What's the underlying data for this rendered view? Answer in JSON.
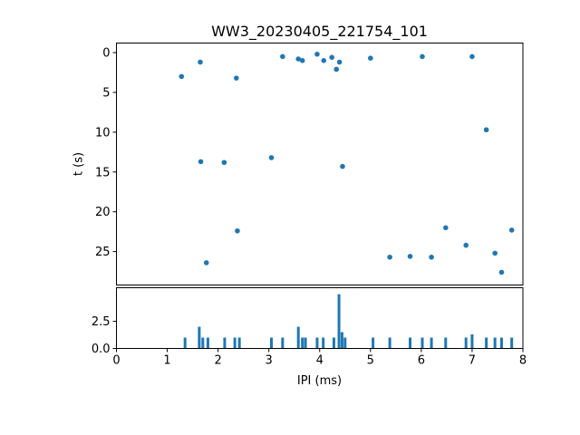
{
  "accent_color": "#1f77b4",
  "axis_color": "#000000",
  "chart_data": [
    {
      "type": "scatter",
      "title": "WW3_20230405_221754_101",
      "xlabel": "",
      "ylabel": "t (s)",
      "xlim": [
        0,
        8
      ],
      "ylim": [
        -1.2,
        29.2
      ],
      "y_inverted": true,
      "yticks": [
        0,
        5,
        10,
        15,
        20,
        25
      ],
      "yticklabels": [
        "0",
        "5",
        "10",
        "15",
        "20",
        "25"
      ],
      "legend": "none",
      "grid": false,
      "points": [
        [
          1.28,
          3.0
        ],
        [
          1.65,
          1.2
        ],
        [
          1.66,
          13.7
        ],
        [
          1.77,
          26.4
        ],
        [
          2.12,
          13.8
        ],
        [
          2.36,
          3.2
        ],
        [
          2.38,
          22.4
        ],
        [
          3.05,
          13.2
        ],
        [
          3.27,
          0.5
        ],
        [
          3.58,
          0.8
        ],
        [
          3.66,
          1.0
        ],
        [
          3.95,
          0.2
        ],
        [
          4.08,
          1.0
        ],
        [
          4.24,
          0.6
        ],
        [
          4.33,
          2.1
        ],
        [
          4.39,
          1.2
        ],
        [
          4.45,
          14.3
        ],
        [
          5.0,
          0.7
        ],
        [
          5.38,
          25.7
        ],
        [
          5.78,
          25.6
        ],
        [
          6.02,
          0.5
        ],
        [
          6.2,
          25.7
        ],
        [
          6.48,
          22.0
        ],
        [
          6.88,
          24.2
        ],
        [
          7.0,
          0.5
        ],
        [
          7.28,
          9.7
        ],
        [
          7.45,
          25.2
        ],
        [
          7.58,
          27.6
        ],
        [
          7.78,
          22.3
        ]
      ]
    },
    {
      "type": "bar",
      "title": "",
      "xlabel": "IPI (ms)",
      "ylabel": "",
      "xlim": [
        0,
        8
      ],
      "ylim": [
        0,
        5.6
      ],
      "yticks": [
        0.0,
        2.5
      ],
      "yticklabels": [
        "0.0",
        "2.5"
      ],
      "xticks": [
        0,
        1,
        2,
        3,
        4,
        5,
        6,
        7,
        8
      ],
      "xticklabels": [
        "0",
        "1",
        "2",
        "3",
        "4",
        "5",
        "6",
        "7",
        "8"
      ],
      "legend": "none",
      "grid": false,
      "bars": [
        [
          1.35,
          1
        ],
        [
          1.63,
          2
        ],
        [
          1.7,
          1
        ],
        [
          1.8,
          1
        ],
        [
          2.13,
          1
        ],
        [
          2.33,
          1
        ],
        [
          2.42,
          1
        ],
        [
          3.05,
          1
        ],
        [
          3.27,
          1
        ],
        [
          3.58,
          2
        ],
        [
          3.66,
          1
        ],
        [
          3.72,
          1
        ],
        [
          3.95,
          1
        ],
        [
          4.07,
          1
        ],
        [
          4.28,
          1
        ],
        [
          4.38,
          5
        ],
        [
          4.44,
          1.5
        ],
        [
          4.5,
          1
        ],
        [
          5.05,
          1
        ],
        [
          5.38,
          1
        ],
        [
          5.78,
          1
        ],
        [
          6.02,
          1
        ],
        [
          6.2,
          1
        ],
        [
          6.48,
          1
        ],
        [
          6.88,
          1
        ],
        [
          7.0,
          1.3
        ],
        [
          7.28,
          1
        ],
        [
          7.45,
          1
        ],
        [
          7.58,
          1
        ],
        [
          7.78,
          1
        ]
      ]
    }
  ]
}
